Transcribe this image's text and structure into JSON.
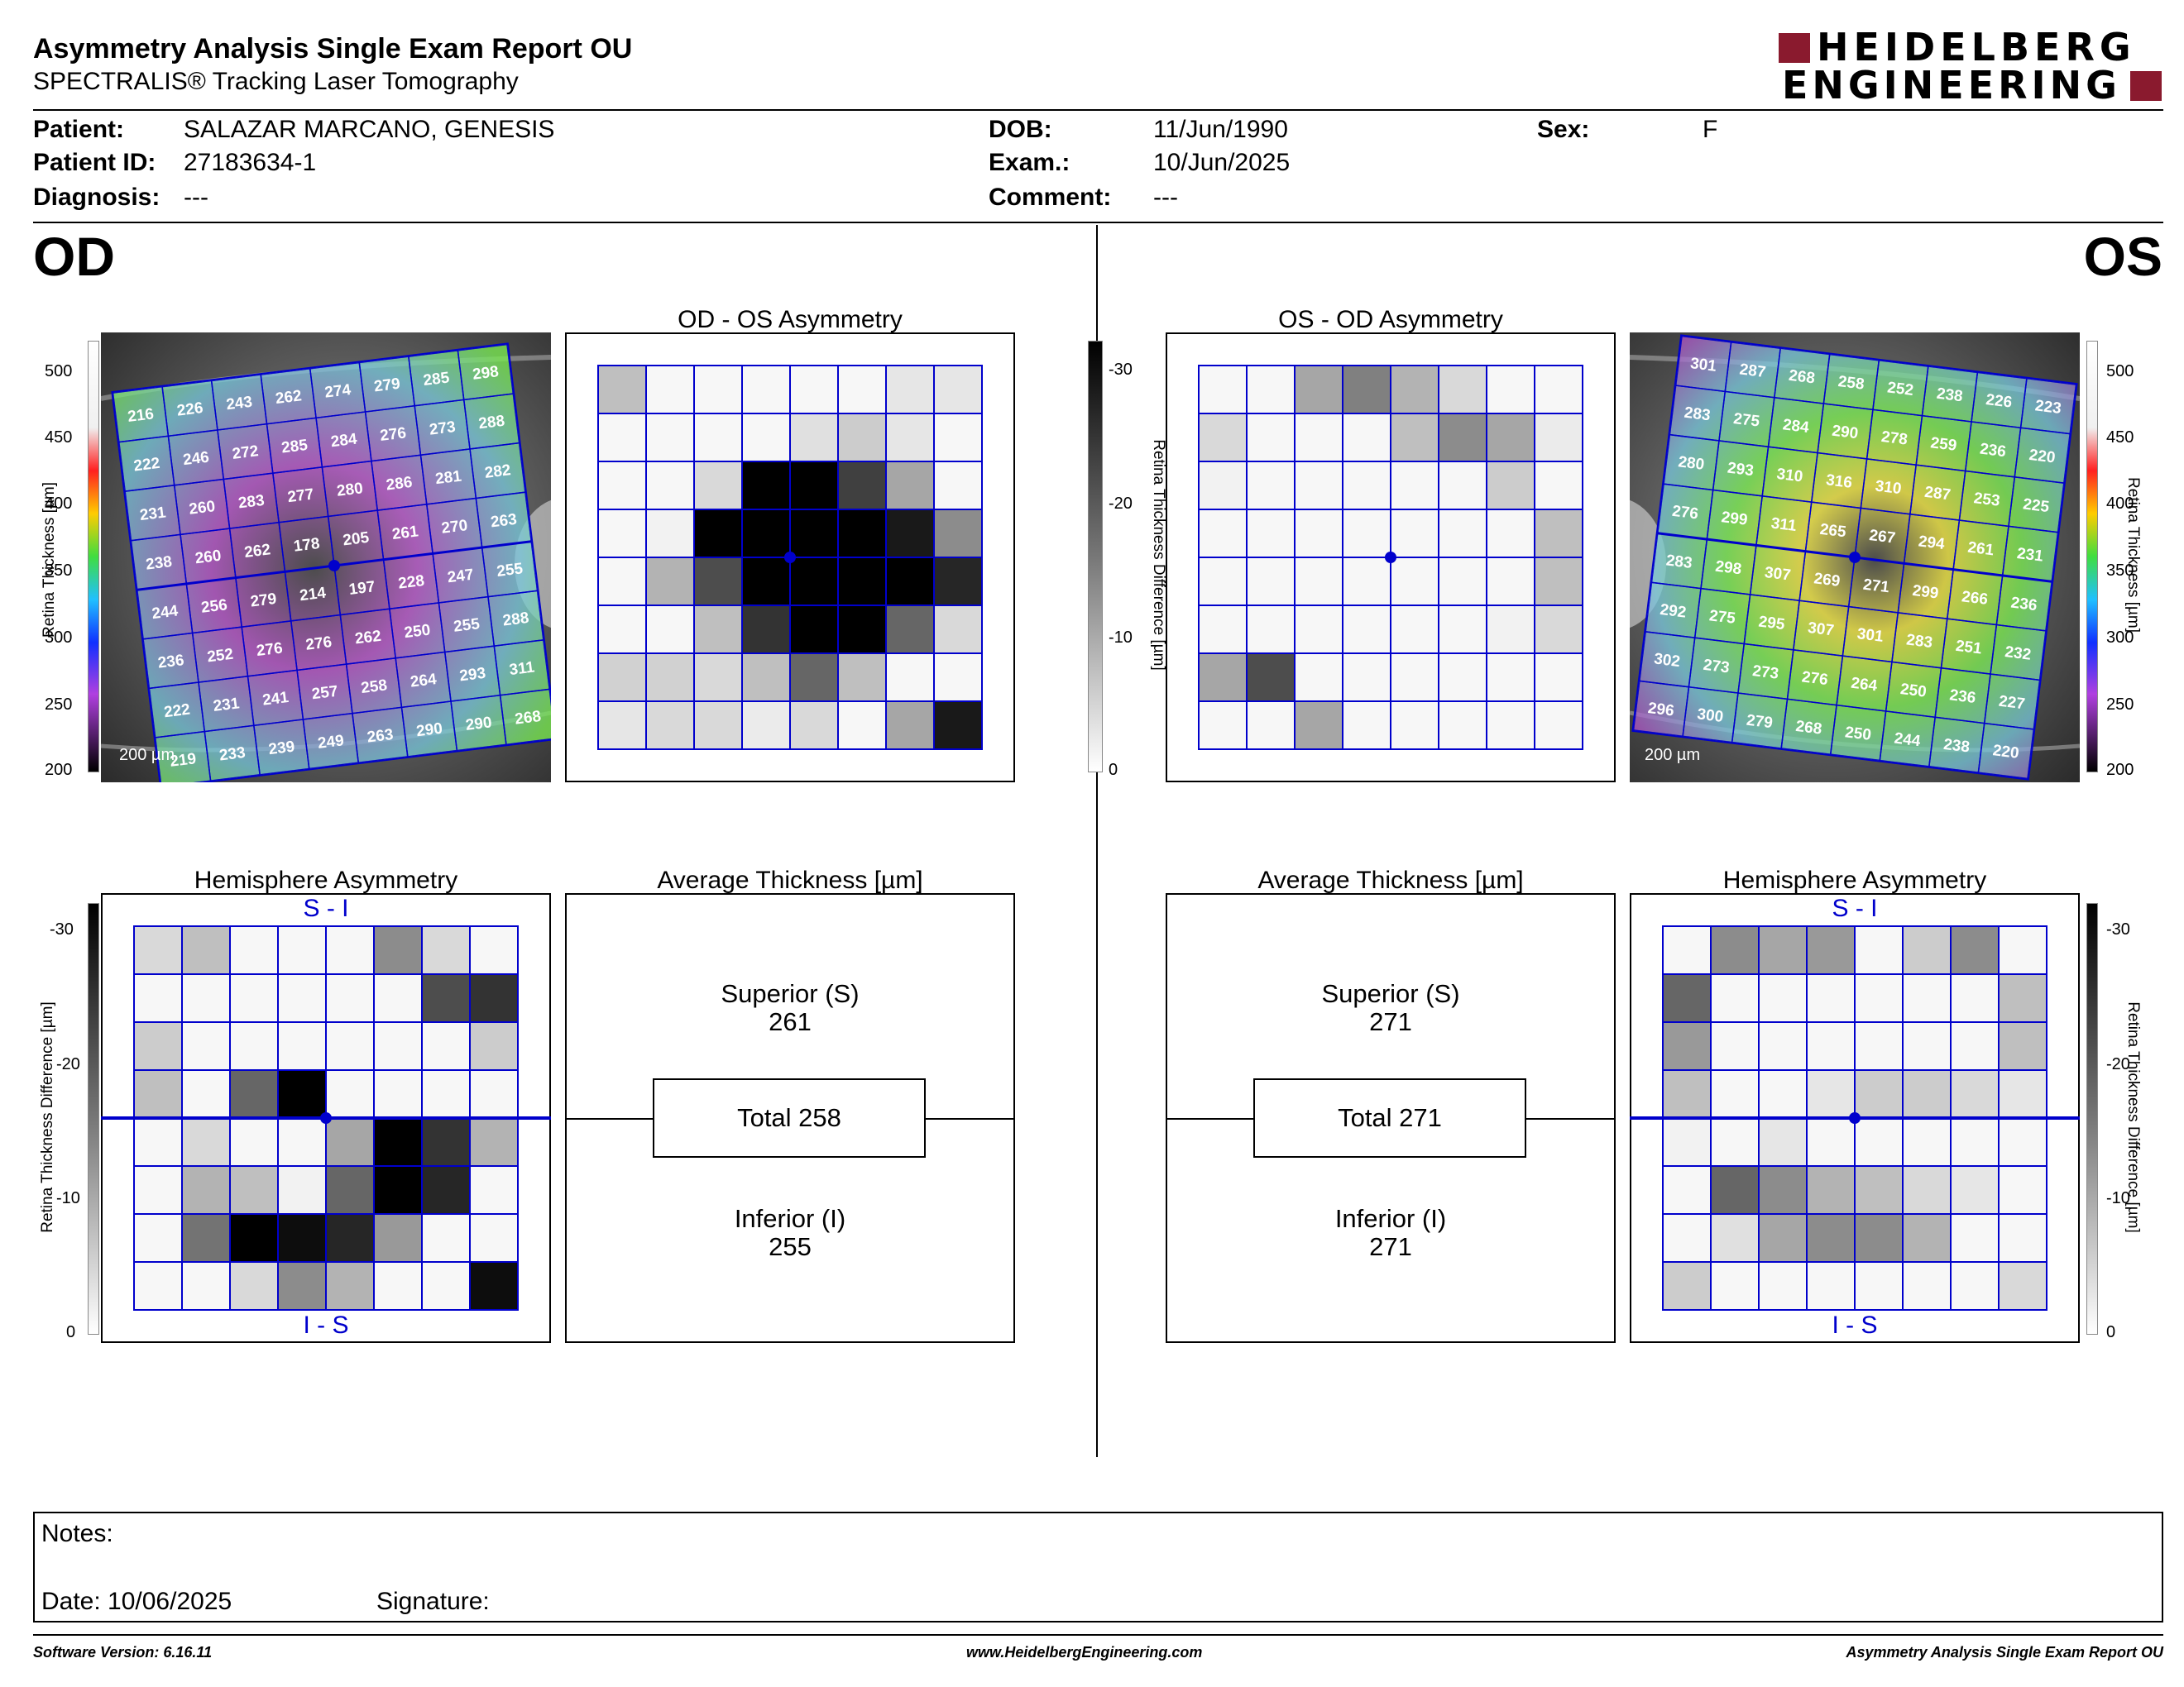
{
  "header": {
    "title": "Asymmetry Analysis Single Exam Report OU",
    "subtitle": "SPECTRALIS® Tracking Laser Tomography",
    "logo_line1": "HEIDELBERG",
    "logo_line2": "ENGINEERING"
  },
  "patient": {
    "patient_label": "Patient:",
    "patient_value": "SALAZAR MARCANO, GENESIS",
    "id_label": "Patient ID:",
    "id_value": "27183634-1",
    "diagnosis_label": "Diagnosis:",
    "diagnosis_value": "---",
    "dob_label": "DOB:",
    "dob_value": "11/Jun/1990",
    "exam_label": "Exam.:",
    "exam_value": "10/Jun/2025",
    "comment_label": "Comment:",
    "comment_value": "---",
    "sex_label": "Sex:",
    "sex_value": "F"
  },
  "eyes": {
    "od": "OD",
    "os": "OS"
  },
  "panels": {
    "od_os_asymmetry": "OD - OS Asymmetry",
    "os_od_asymmetry": "OS - OD Asymmetry",
    "hemisphere_asymmetry": "Hemisphere Asymmetry",
    "average_thickness": "Average Thickness [µm]",
    "si_label": "S - I",
    "is_label": "I - S",
    "scale_bar": "200 µm"
  },
  "colorbars": {
    "thickness_label": "Retina Thickness [µm]",
    "difference_label": "Retina Thickness Difference [µm]",
    "thickness_ticks": [
      "500",
      "450",
      "400",
      "350",
      "300",
      "250",
      "200"
    ],
    "difference_ticks": [
      "-30",
      "-20",
      "-10",
      "0"
    ]
  },
  "od": {
    "thickness_grid": [
      [
        "216",
        "226",
        "243",
        "262",
        "274",
        "279",
        "285",
        "298"
      ],
      [
        "222",
        "246",
        "272",
        "285",
        "284",
        "276",
        "273",
        "288"
      ],
      [
        "231",
        "260",
        "283",
        "277",
        "280",
        "286",
        "281",
        "282"
      ],
      [
        "238",
        "260",
        "262",
        "178",
        "205",
        "261",
        "270",
        "263"
      ],
      [
        "244",
        "256",
        "279",
        "214",
        "197",
        "228",
        "247",
        "255"
      ],
      [
        "236",
        "252",
        "276",
        "276",
        "262",
        "250",
        "255",
        "288"
      ],
      [
        "222",
        "231",
        "241",
        "257",
        "258",
        "264",
        "293",
        "311"
      ],
      [
        "219",
        "233",
        "239",
        "249",
        "263",
        "290",
        "290",
        "268"
      ]
    ],
    "asymmetry_shades": [
      [
        0.25,
        0.03,
        0.03,
        0.03,
        0.03,
        0.03,
        0.1,
        0.1
      ],
      [
        0.03,
        0.03,
        0.03,
        0.03,
        0.12,
        0.2,
        0.1,
        0.03
      ],
      [
        0.03,
        0.03,
        0.15,
        1.0,
        1.0,
        0.75,
        0.35,
        0.03
      ],
      [
        0.03,
        0.05,
        1.0,
        1.0,
        1.0,
        1.0,
        0.9,
        0.45
      ],
      [
        0.03,
        0.3,
        0.7,
        1.0,
        1.0,
        1.0,
        1.0,
        0.85
      ],
      [
        0.03,
        0.03,
        0.25,
        0.8,
        1.0,
        1.0,
        0.6,
        0.15
      ],
      [
        0.18,
        0.18,
        0.15,
        0.25,
        0.6,
        0.25,
        0.03,
        0.03
      ],
      [
        0.1,
        0.15,
        0.15,
        0.08,
        0.15,
        0.03,
        0.35,
        0.9
      ]
    ],
    "hemisphere_shades": [
      [
        0.15,
        0.25,
        0.03,
        0.03,
        0.03,
        0.45,
        0.15,
        0.03
      ],
      [
        0.03,
        0.03,
        0.03,
        0.03,
        0.03,
        0.03,
        0.7,
        0.8
      ],
      [
        0.2,
        0.03,
        0.03,
        0.03,
        0.03,
        0.03,
        0.03,
        0.2
      ],
      [
        0.25,
        0.03,
        0.6,
        1.0,
        0.03,
        0.03,
        0.03,
        0.03
      ],
      [
        0.03,
        0.15,
        0.03,
        0.03,
        0.35,
        1.0,
        0.8,
        0.3
      ],
      [
        0.03,
        0.3,
        0.25,
        0.05,
        0.6,
        1.0,
        0.85,
        0.03
      ],
      [
        0.03,
        0.55,
        1.0,
        0.95,
        0.85,
        0.4,
        0.03,
        0.03
      ],
      [
        0.03,
        0.03,
        0.15,
        0.45,
        0.3,
        0.03,
        0.03,
        0.95
      ]
    ],
    "superior_label": "Superior (S)",
    "superior_value": "261",
    "total_label": "Total 258",
    "inferior_label": "Inferior (I)",
    "inferior_value": "255"
  },
  "os": {
    "thickness_grid": [
      [
        "301",
        "287",
        "268",
        "258",
        "252",
        "238",
        "226",
        "223"
      ],
      [
        "283",
        "275",
        "284",
        "290",
        "278",
        "259",
        "236",
        "220"
      ],
      [
        "280",
        "293",
        "310",
        "316",
        "310",
        "287",
        "253",
        "225"
      ],
      [
        "276",
        "299",
        "311",
        "265",
        "267",
        "294",
        "261",
        "231"
      ],
      [
        "283",
        "298",
        "307",
        "269",
        "271",
        "299",
        "266",
        "236"
      ],
      [
        "292",
        "275",
        "295",
        "307",
        "301",
        "283",
        "251",
        "232"
      ],
      [
        "302",
        "273",
        "273",
        "276",
        "264",
        "250",
        "236",
        "227"
      ],
      [
        "296",
        "300",
        "279",
        "268",
        "250",
        "244",
        "238",
        "220"
      ]
    ],
    "asymmetry_shades": [
      [
        0.03,
        0.03,
        0.35,
        0.5,
        0.3,
        0.15,
        0.03,
        0.03
      ],
      [
        0.15,
        0.03,
        0.03,
        0.03,
        0.25,
        0.45,
        0.35,
        0.08
      ],
      [
        0.05,
        0.03,
        0.03,
        0.03,
        0.03,
        0.03,
        0.2,
        0.03
      ],
      [
        0.03,
        0.03,
        0.03,
        0.03,
        0.03,
        0.03,
        0.03,
        0.25
      ],
      [
        0.03,
        0.03,
        0.03,
        0.03,
        0.03,
        0.03,
        0.03,
        0.25
      ],
      [
        0.03,
        0.03,
        0.03,
        0.03,
        0.03,
        0.03,
        0.05,
        0.15
      ],
      [
        0.35,
        0.7,
        0.03,
        0.03,
        0.03,
        0.03,
        0.03,
        0.03
      ],
      [
        0.03,
        0.03,
        0.35,
        0.03,
        0.03,
        0.03,
        0.03,
        0.03
      ]
    ],
    "hemisphere_shades": [
      [
        0.03,
        0.45,
        0.35,
        0.4,
        0.03,
        0.2,
        0.45,
        0.03
      ],
      [
        0.6,
        0.03,
        0.03,
        0.03,
        0.03,
        0.03,
        0.03,
        0.25
      ],
      [
        0.4,
        0.03,
        0.03,
        0.03,
        0.03,
        0.03,
        0.03,
        0.25
      ],
      [
        0.25,
        0.03,
        0.03,
        0.1,
        0.2,
        0.2,
        0.15,
        0.1
      ],
      [
        0.05,
        0.03,
        0.1,
        0.03,
        0.03,
        0.03,
        0.03,
        0.03
      ],
      [
        0.03,
        0.6,
        0.45,
        0.3,
        0.25,
        0.15,
        0.1,
        0.03
      ],
      [
        0.03,
        0.12,
        0.35,
        0.45,
        0.45,
        0.3,
        0.03,
        0.03
      ],
      [
        0.2,
        0.03,
        0.03,
        0.03,
        0.03,
        0.03,
        0.03,
        0.15
      ]
    ],
    "superior_label": "Superior (S)",
    "superior_value": "271",
    "total_label": "Total 271",
    "inferior_label": "Inferior (I)",
    "inferior_value": "271"
  },
  "notes": {
    "notes_label": "Notes:",
    "date_label": "Date: 10/06/2025",
    "signature_label": "Signature:"
  },
  "footer": {
    "software": "Software Version: 6.16.11",
    "website": "www.HeidelbergEngineering.com",
    "report": "Asymmetry Analysis Single Exam Report OU"
  },
  "colors": {
    "grid_blue": "#0000cc",
    "brand_red": "#8a1a2e"
  }
}
